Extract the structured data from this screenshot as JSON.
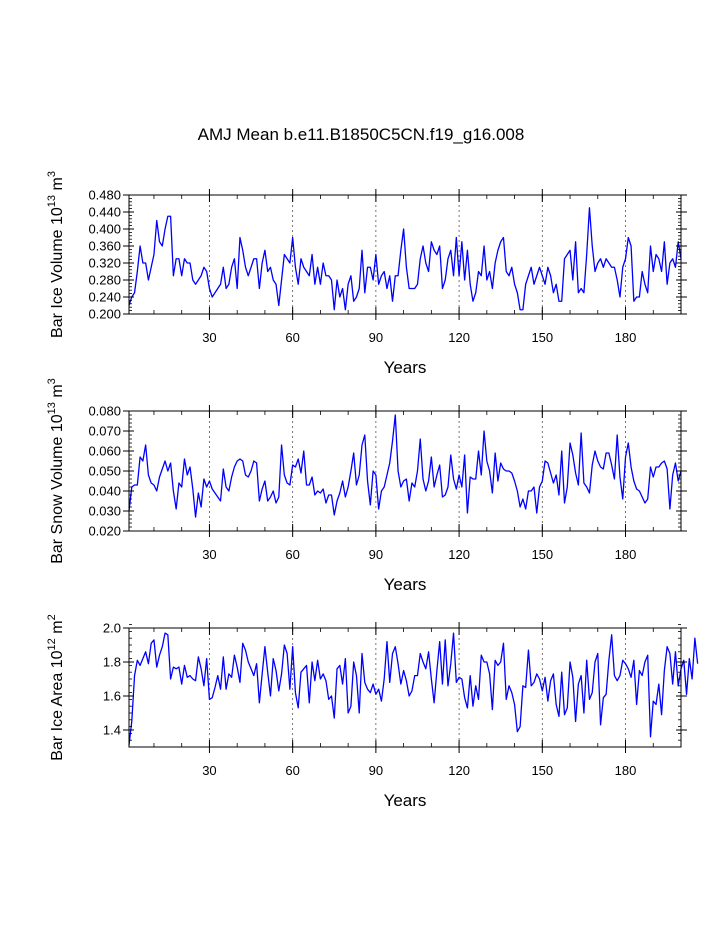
{
  "title": "AMJ Mean b.e11.B1850C5CN.f19_g16.008",
  "chart_data": [
    {
      "type": "line",
      "id": "ice-volume",
      "ylabel": {
        "text": "Bar Ice Volume 10",
        "exp": "13",
        "unit": " m",
        "unit_exp": "3"
      },
      "xlabel": "Years",
      "xlim": [
        1,
        200
      ],
      "ylim": [
        0.2,
        0.48
      ],
      "xticks": [
        30,
        60,
        90,
        120,
        150,
        180
      ],
      "xtick_labels": [
        "30",
        "60",
        "90",
        "120",
        "150",
        "180"
      ],
      "yticks": [
        0.2,
        0.24,
        0.28,
        0.32,
        0.36,
        0.4,
        0.44,
        0.48
      ],
      "ytick_labels": [
        "0.200",
        "0.240",
        "0.280",
        "0.320",
        "0.360",
        "0.400",
        "0.440",
        "0.480"
      ],
      "yminor_step": 0.008,
      "vlines": [
        30,
        60,
        90,
        120,
        150,
        180
      ],
      "color": "#0000ff",
      "x_start": 1,
      "values": [
        0.22,
        0.24,
        0.25,
        0.3,
        0.36,
        0.32,
        0.32,
        0.28,
        0.31,
        0.34,
        0.42,
        0.37,
        0.36,
        0.4,
        0.43,
        0.43,
        0.29,
        0.33,
        0.33,
        0.29,
        0.33,
        0.32,
        0.32,
        0.28,
        0.27,
        0.28,
        0.29,
        0.31,
        0.3,
        0.26,
        0.24,
        0.25,
        0.26,
        0.27,
        0.31,
        0.26,
        0.27,
        0.31,
        0.33,
        0.26,
        0.38,
        0.35,
        0.31,
        0.29,
        0.31,
        0.33,
        0.33,
        0.26,
        0.32,
        0.35,
        0.3,
        0.31,
        0.28,
        0.27,
        0.22,
        0.28,
        0.34,
        0.33,
        0.32,
        0.38,
        0.31,
        0.27,
        0.33,
        0.31,
        0.3,
        0.29,
        0.34,
        0.27,
        0.31,
        0.27,
        0.32,
        0.29,
        0.29,
        0.28,
        0.21,
        0.28,
        0.24,
        0.26,
        0.21,
        0.27,
        0.29,
        0.23,
        0.24,
        0.26,
        0.35,
        0.25,
        0.31,
        0.31,
        0.28,
        0.34,
        0.27,
        0.29,
        0.3,
        0.26,
        0.29,
        0.23,
        0.29,
        0.29,
        0.35,
        0.4,
        0.31,
        0.26,
        0.26,
        0.26,
        0.27,
        0.33,
        0.36,
        0.32,
        0.3,
        0.37,
        0.35,
        0.34,
        0.36,
        0.26,
        0.28,
        0.33,
        0.35,
        0.29,
        0.38,
        0.29,
        0.37,
        0.28,
        0.35,
        0.27,
        0.23,
        0.25,
        0.3,
        0.29,
        0.36,
        0.28,
        0.3,
        0.26,
        0.32,
        0.35,
        0.37,
        0.38,
        0.3,
        0.29,
        0.31,
        0.27,
        0.25,
        0.21,
        0.21,
        0.27,
        0.29,
        0.31,
        0.27,
        0.29,
        0.31,
        0.29,
        0.27,
        0.31,
        0.29,
        0.25,
        0.27,
        0.23,
        0.23,
        0.33,
        0.34,
        0.35,
        0.28,
        0.37,
        0.25,
        0.26,
        0.25,
        0.34,
        0.45,
        0.36,
        0.3,
        0.32,
        0.33,
        0.31,
        0.33,
        0.32,
        0.31,
        0.31,
        0.28,
        0.24,
        0.31,
        0.33,
        0.38,
        0.36,
        0.23,
        0.24,
        0.24,
        0.3,
        0.27,
        0.25,
        0.36,
        0.3,
        0.34,
        0.33,
        0.3,
        0.37,
        0.27,
        0.32,
        0.33,
        0.31,
        0.37,
        0.33
      ]
    },
    {
      "type": "line",
      "id": "snow-volume",
      "ylabel": {
        "text": "Bar Snow Volume 10",
        "exp": "13",
        "unit": " m",
        "unit_exp": "3"
      },
      "xlabel": "Years",
      "xlim": [
        1,
        200
      ],
      "ylim": [
        0.02,
        0.08
      ],
      "xticks": [
        30,
        60,
        90,
        120,
        150,
        180
      ],
      "xtick_labels": [
        "30",
        "60",
        "90",
        "120",
        "150",
        "180"
      ],
      "yticks": [
        0.02,
        0.03,
        0.04,
        0.05,
        0.06,
        0.07,
        0.08
      ],
      "ytick_labels": [
        "0.020",
        "0.030",
        "0.040",
        "0.050",
        "0.060",
        "0.070",
        "0.080"
      ],
      "yminor_step": 0.002,
      "vlines": [
        30,
        60,
        90,
        120,
        150,
        180
      ],
      "color": "#0000ff",
      "x_start": 1,
      "values": [
        0.03,
        0.042,
        0.043,
        0.043,
        0.057,
        0.055,
        0.063,
        0.048,
        0.044,
        0.043,
        0.04,
        0.047,
        0.051,
        0.055,
        0.05,
        0.054,
        0.04,
        0.031,
        0.044,
        0.042,
        0.056,
        0.048,
        0.052,
        0.041,
        0.027,
        0.039,
        0.032,
        0.046,
        0.042,
        0.045,
        0.041,
        0.039,
        0.037,
        0.035,
        0.051,
        0.042,
        0.04,
        0.047,
        0.052,
        0.055,
        0.056,
        0.055,
        0.048,
        0.047,
        0.05,
        0.055,
        0.054,
        0.035,
        0.041,
        0.045,
        0.035,
        0.037,
        0.04,
        0.034,
        0.037,
        0.063,
        0.048,
        0.044,
        0.043,
        0.053,
        0.052,
        0.056,
        0.049,
        0.06,
        0.043,
        0.043,
        0.047,
        0.038,
        0.04,
        0.039,
        0.041,
        0.034,
        0.038,
        0.038,
        0.028,
        0.035,
        0.039,
        0.045,
        0.037,
        0.042,
        0.05,
        0.059,
        0.043,
        0.048,
        0.063,
        0.068,
        0.045,
        0.033,
        0.05,
        0.048,
        0.031,
        0.04,
        0.042,
        0.048,
        0.054,
        0.065,
        0.078,
        0.05,
        0.042,
        0.045,
        0.046,
        0.035,
        0.044,
        0.042,
        0.05,
        0.066,
        0.046,
        0.04,
        0.045,
        0.057,
        0.042,
        0.048,
        0.053,
        0.037,
        0.038,
        0.042,
        0.058,
        0.046,
        0.041,
        0.048,
        0.042,
        0.058,
        0.029,
        0.047,
        0.046,
        0.046,
        0.06,
        0.048,
        0.07,
        0.055,
        0.05,
        0.039,
        0.059,
        0.045,
        0.054,
        0.051,
        0.05,
        0.05,
        0.049,
        0.045,
        0.04,
        0.032,
        0.036,
        0.031,
        0.04,
        0.04,
        0.042,
        0.029,
        0.042,
        0.045,
        0.055,
        0.054,
        0.049,
        0.044,
        0.048,
        0.038,
        0.06,
        0.034,
        0.042,
        0.064,
        0.058,
        0.049,
        0.043,
        0.069,
        0.044,
        0.042,
        0.039,
        0.053,
        0.06,
        0.055,
        0.052,
        0.051,
        0.059,
        0.059,
        0.053,
        0.046,
        0.068,
        0.047,
        0.036,
        0.057,
        0.064,
        0.052,
        0.045,
        0.041,
        0.04,
        0.037,
        0.034,
        0.036,
        0.052,
        0.047,
        0.052,
        0.052,
        0.054,
        0.055,
        0.051,
        0.031,
        0.048,
        0.054,
        0.045,
        0.05
      ]
    },
    {
      "type": "line",
      "id": "ice-area",
      "ylabel": {
        "text": "Bar Ice Area 10",
        "exp": "12",
        "unit": " m",
        "unit_exp": "2"
      },
      "xlabel": "Years",
      "xlim": [
        1,
        200
      ],
      "ylim": [
        1.3,
        2.0
      ],
      "xticks": [
        30,
        60,
        90,
        120,
        150,
        180
      ],
      "xtick_labels": [
        "30",
        "60",
        "90",
        "120",
        "150",
        "180"
      ],
      "yticks": [
        1.4,
        1.6,
        1.8,
        2.0
      ],
      "ytick_labels": [
        "1.4",
        "1.6",
        "1.8",
        "2.0"
      ],
      "yminor_step": 0.04,
      "vlines": [
        30,
        60,
        90,
        120,
        150,
        180
      ],
      "color": "#0000ff",
      "x_start": 1,
      "values": [
        1.31,
        1.45,
        1.72,
        1.81,
        1.78,
        1.82,
        1.86,
        1.79,
        1.91,
        1.93,
        1.77,
        1.84,
        1.89,
        1.97,
        1.96,
        1.7,
        1.77,
        1.76,
        1.77,
        1.67,
        1.78,
        1.71,
        1.72,
        1.7,
        1.69,
        1.83,
        1.76,
        1.66,
        1.82,
        1.58,
        1.59,
        1.65,
        1.72,
        1.64,
        1.83,
        1.64,
        1.73,
        1.71,
        1.84,
        1.77,
        1.68,
        1.91,
        1.87,
        1.8,
        1.76,
        1.72,
        1.79,
        1.56,
        1.73,
        1.89,
        1.74,
        1.6,
        1.82,
        1.75,
        1.63,
        1.73,
        1.9,
        1.85,
        1.64,
        1.89,
        1.62,
        1.53,
        1.74,
        1.76,
        1.78,
        1.56,
        1.8,
        1.69,
        1.81,
        1.7,
        1.73,
        1.69,
        1.58,
        1.6,
        1.47,
        1.76,
        1.78,
        1.67,
        1.82,
        1.5,
        1.54,
        1.8,
        1.72,
        1.5,
        1.85,
        1.68,
        1.64,
        1.62,
        1.67,
        1.61,
        1.64,
        1.57,
        1.7,
        1.92,
        1.68,
        1.85,
        1.89,
        1.79,
        1.67,
        1.75,
        1.69,
        1.6,
        1.63,
        1.72,
        1.72,
        1.85,
        1.8,
        1.76,
        1.86,
        1.7,
        1.56,
        1.75,
        1.92,
        1.67,
        1.93,
        1.66,
        1.79,
        1.97,
        1.68,
        1.71,
        1.7,
        1.59,
        1.53,
        1.72,
        1.54,
        1.66,
        1.58,
        1.84,
        1.8,
        1.8,
        1.73,
        1.52,
        1.81,
        1.78,
        1.8,
        1.91,
        1.58,
        1.66,
        1.62,
        1.55,
        1.39,
        1.42,
        1.66,
        1.65,
        1.87,
        1.66,
        1.68,
        1.73,
        1.7,
        1.63,
        1.71,
        1.57,
        1.69,
        1.73,
        1.55,
        1.48,
        1.74,
        1.49,
        1.53,
        1.8,
        1.71,
        1.45,
        1.67,
        1.72,
        1.5,
        1.81,
        1.58,
        1.62,
        1.8,
        1.85,
        1.43,
        1.59,
        1.61,
        1.81,
        1.96,
        1.72,
        1.69,
        1.72,
        1.81,
        1.79,
        1.76,
        1.71,
        1.81,
        1.55,
        1.75,
        1.72,
        1.8,
        1.84,
        1.36,
        1.57,
        1.55,
        1.67,
        1.49,
        1.75,
        1.89,
        1.85,
        1.67,
        1.86,
        1.66,
        1.76,
        1.81,
        1.61,
        1.82,
        1.7,
        1.94,
        1.79
      ]
    }
  ]
}
